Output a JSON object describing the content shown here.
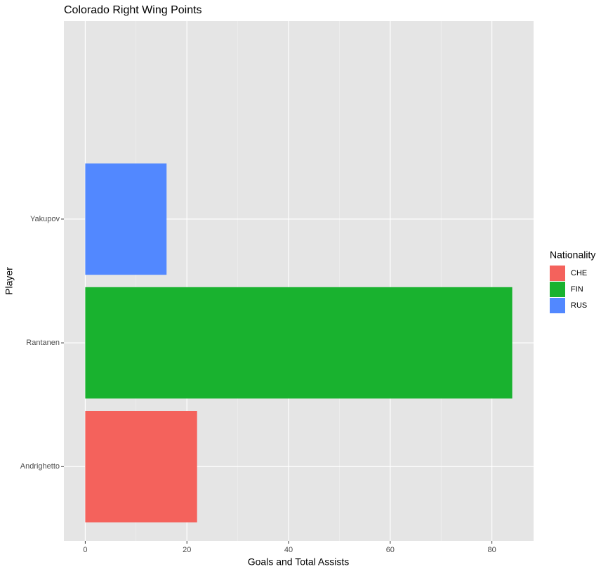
{
  "chart_data": {
    "type": "bar",
    "orientation": "horizontal",
    "title": "Colorado Right Wing Points",
    "x_label": "Goals and Total Assists",
    "y_label": "Player",
    "categories": [
      "Andrighetto",
      "Rantanen",
      "Yakupov"
    ],
    "legend_title": "Nationality",
    "legend_position": "right",
    "series": [
      {
        "name": "CHE",
        "color": "#f4625c",
        "values": [
          22,
          null,
          null
        ]
      },
      {
        "name": "FIN",
        "color": "#19b22f",
        "values": [
          null,
          84,
          null
        ]
      },
      {
        "name": "RUS",
        "color": "#5288ff",
        "values": [
          null,
          null,
          16
        ]
      }
    ],
    "xlim": [
      -4.2,
      88.2
    ],
    "xticks": [
      0,
      20,
      40,
      60,
      80
    ],
    "x_minor_ticks": [
      10,
      30,
      50,
      70
    ],
    "grid": true
  }
}
